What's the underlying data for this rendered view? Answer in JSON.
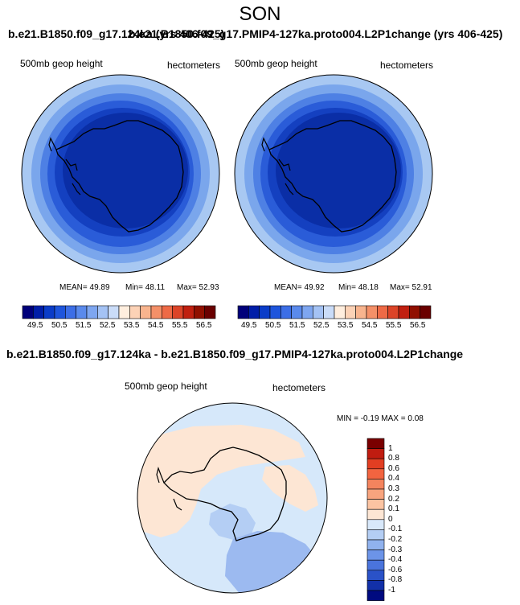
{
  "season": "SON",
  "left_panel": {
    "title": "b.e21.B1850.f09_g17.124ka (yrs 406-425)",
    "label_left": "500mb geop height",
    "label_right": "hectometers",
    "stats": {
      "mean": "MEAN=  49.89",
      "min": "Min=  48.11",
      "max": "Max=  52.93"
    }
  },
  "right_panel": {
    "title": "b.e21.B1850.f09_g17.PMIP4-127ka.proto004.L2P1change (yrs 406-425)",
    "label_left": "500mb geop height",
    "label_right": "hectometers",
    "stats": {
      "mean": "MEAN=  49.92",
      "min": "Min=  48.18",
      "max": "Max=  52.91"
    }
  },
  "difference_panel": {
    "title": "b.e21.B1850.f09_g17.124ka - b.e21.B1850.f09_g17.PMIP4-127ka.proto004.L2P1change",
    "label_left": "500mb geop height",
    "label_right": "hectometers",
    "stats": "MIN =  -0.19 MAX =   0.08"
  },
  "horizontal_colorbar": {
    "labels": [
      "49.5",
      "50.5",
      "51.5",
      "52.5",
      "53.5",
      "54.5",
      "55.5",
      "56.5"
    ],
    "colors": [
      "#00007a",
      "#001ea8",
      "#0a3cc8",
      "#1e55dc",
      "#3c6ee6",
      "#5a8aec",
      "#7ea6f0",
      "#a4c2f4",
      "#cadcf8",
      "#ffeede",
      "#fcd2b6",
      "#f8b48e",
      "#f49068",
      "#ee6a46",
      "#dc4428",
      "#c02010",
      "#901000",
      "#6a0000"
    ]
  },
  "vertical_colorbar": {
    "labels": [
      "1",
      "0.8",
      "0.6",
      "0.4",
      "0.3",
      "0.2",
      "0.1",
      "0",
      "-0.1",
      "-0.2",
      "-0.3",
      "-0.4",
      "-0.6",
      "-0.8",
      "-1"
    ],
    "colors": [
      "#7a0000",
      "#c01c10",
      "#e23e22",
      "#f26440",
      "#f4845e",
      "#f8a47e",
      "#fcc4a2",
      "#fde6d4",
      "#d8e8fa",
      "#b4cef4",
      "#90b2ee",
      "#6c94e8",
      "#4a74dc",
      "#2a52c8",
      "#1230a8",
      "#000a80"
    ]
  },
  "map_colors": {
    "ring_outer": "#a8c8f2",
    "ring_2": "#7aa6ec",
    "ring_3": "#4e80e4",
    "ring_4": "#2a5cd8",
    "ring_5": "#1440c0",
    "core": "#0a2ea6",
    "diff_base": "#d6e8fa",
    "diff_positive": "#fde6d4",
    "diff_negative": "#b4cef4",
    "diff_negative_strong": "#9cbaf0"
  }
}
